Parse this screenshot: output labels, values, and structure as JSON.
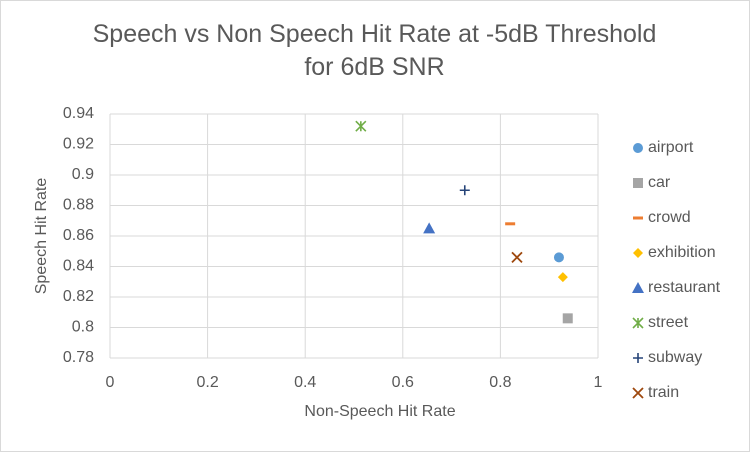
{
  "chart_data": {
    "type": "scatter",
    "title": "Speech vs Non Speech Hit Rate at -5dB Threshold for 6dB SNR",
    "x_label": "Non-Speech Hit Rate",
    "y_label": "Speech Hit Rate",
    "xlim": [
      0,
      1
    ],
    "xticks": [
      0,
      0.2,
      0.4,
      0.6,
      0.8,
      1
    ],
    "ylim": [
      0.78,
      0.94
    ],
    "yticks": [
      0.78,
      0.8,
      0.82,
      0.84,
      0.86,
      0.88,
      0.9,
      0.92,
      0.94
    ],
    "grid": true,
    "legend": "right",
    "series": [
      {
        "name": "airport",
        "color": "#5b9bd5",
        "marker": "circle",
        "x": [
          0.92
        ],
        "values": [
          0.846
        ]
      },
      {
        "name": "car",
        "color": "#a5a5a5",
        "marker": "square",
        "x": [
          0.938
        ],
        "values": [
          0.806
        ]
      },
      {
        "name": "crowd",
        "color": "#ed7d31",
        "marker": "dash",
        "x": [
          0.82
        ],
        "values": [
          0.868
        ]
      },
      {
        "name": "exhibition",
        "color": "#ffc000",
        "marker": "diamond",
        "x": [
          0.928
        ],
        "values": [
          0.833
        ]
      },
      {
        "name": "restaurant",
        "color": "#4472c4",
        "marker": "triangle",
        "x": [
          0.654
        ],
        "values": [
          0.865
        ]
      },
      {
        "name": "street",
        "color": "#70ad47",
        "marker": "star",
        "x": [
          0.514
        ],
        "values": [
          0.932
        ]
      },
      {
        "name": "subway",
        "color": "#264478",
        "marker": "plus",
        "x": [
          0.727
        ],
        "values": [
          0.89
        ]
      },
      {
        "name": "train",
        "color": "#9e480e",
        "marker": "x",
        "x": [
          0.834
        ],
        "values": [
          0.846
        ]
      }
    ]
  }
}
